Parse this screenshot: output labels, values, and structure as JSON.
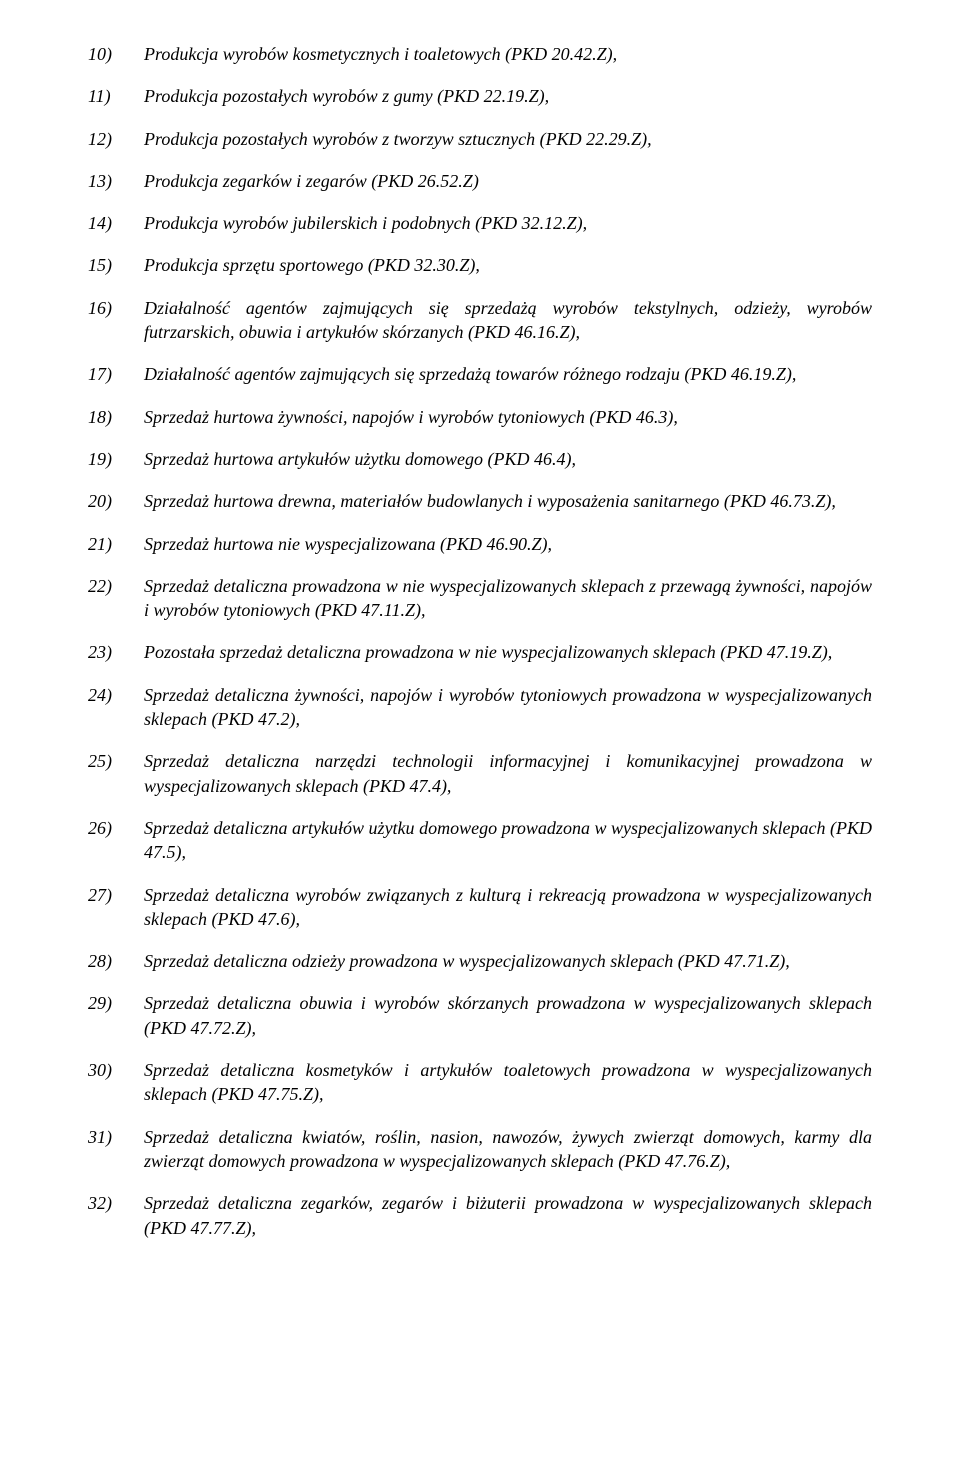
{
  "items": [
    {
      "num": "10)",
      "text": "Produkcja wyrobów kosmetycznych i toaletowych (PKD 20.42.Z),",
      "justify": false
    },
    {
      "num": "11)",
      "text": "Produkcja pozostałych wyrobów z gumy (PKD 22.19.Z),",
      "justify": false
    },
    {
      "num": "12)",
      "text": "Produkcja pozostałych wyrobów z tworzyw sztucznych (PKD 22.29.Z),",
      "justify": false
    },
    {
      "num": "13)",
      "text": "Produkcja zegarków i zegarów (PKD 26.52.Z)",
      "justify": false
    },
    {
      "num": "14)",
      "text": "Produkcja wyrobów jubilerskich i podobnych (PKD 32.12.Z),",
      "justify": false
    },
    {
      "num": "15)",
      "text": "Produkcja sprzętu sportowego (PKD 32.30.Z),",
      "justify": false
    },
    {
      "num": "16)",
      "text": "Działalność agentów zajmujących się sprzedażą wyrobów tekstylnych, odzieży, wyrobów futrzarskich, obuwia i artykułów skórzanych (PKD 46.16.Z),",
      "justify": true
    },
    {
      "num": "17)",
      "text": "Działalność agentów zajmujących się sprzedażą towarów różnego rodzaju (PKD 46.19.Z),",
      "justify": false
    },
    {
      "num": "18)",
      "text": "Sprzedaż hurtowa żywności, napojów i wyrobów tytoniowych (PKD 46.3),",
      "justify": false
    },
    {
      "num": "19)",
      "text": "Sprzedaż hurtowa artykułów użytku domowego (PKD 46.4),",
      "justify": false
    },
    {
      "num": "20)",
      "text": "Sprzedaż hurtowa drewna, materiałów budowlanych i wyposażenia sanitarnego (PKD 46.73.Z),",
      "justify": true
    },
    {
      "num": "21)",
      "text": "Sprzedaż hurtowa nie wyspecjalizowana (PKD 46.90.Z),",
      "justify": false
    },
    {
      "num": "22)",
      "text": "Sprzedaż detaliczna prowadzona w nie wyspecjalizowanych sklepach z przewagą żywności, napojów i wyrobów tytoniowych (PKD 47.11.Z),",
      "justify": true
    },
    {
      "num": "23)",
      "text": "Pozostała sprzedaż detaliczna prowadzona w nie wyspecjalizowanych sklepach (PKD 47.19.Z),",
      "justify": true
    },
    {
      "num": "24)",
      "text": "Sprzedaż detaliczna żywności, napojów i wyrobów tytoniowych prowadzona w wyspecjalizowanych sklepach (PKD 47.2),",
      "justify": true
    },
    {
      "num": "25)",
      "text": "Sprzedaż detaliczna narzędzi technologii informacyjnej i komunikacyjnej prowadzona w wyspecjalizowanych sklepach (PKD 47.4),",
      "justify": true
    },
    {
      "num": "26)",
      "text": "Sprzedaż detaliczna artykułów użytku domowego prowadzona w wyspecjalizowanych sklepach (PKD 47.5),",
      "justify": true
    },
    {
      "num": "27)",
      "text": "Sprzedaż detaliczna wyrobów związanych z kulturą i rekreacją prowadzona w wyspecjalizowanych sklepach (PKD 47.6),",
      "justify": true
    },
    {
      "num": "28)",
      "text": "Sprzedaż detaliczna odzieży prowadzona w wyspecjalizowanych sklepach (PKD 47.71.Z),",
      "justify": false
    },
    {
      "num": "29)",
      "text": "Sprzedaż detaliczna obuwia i wyrobów skórzanych prowadzona w wyspecjalizowanych sklepach (PKD 47.72.Z),",
      "justify": true
    },
    {
      "num": "30)",
      "text": "Sprzedaż detaliczna kosmetyków i artykułów toaletowych prowadzona w wyspecjalizowanych sklepach (PKD 47.75.Z),",
      "justify": true
    },
    {
      "num": "31)",
      "text": "Sprzedaż detaliczna kwiatów, roślin, nasion, nawozów, żywych zwierząt domowych, karmy dla zwierząt domowych prowadzona w wyspecjalizowanych sklepach (PKD 47.76.Z),",
      "justify": true
    },
    {
      "num": "32)",
      "text": "Sprzedaż detaliczna zegarków, zegarów i biżuterii prowadzona w wyspecjalizowanych sklepach (PKD 47.77.Z),",
      "justify": true
    }
  ]
}
